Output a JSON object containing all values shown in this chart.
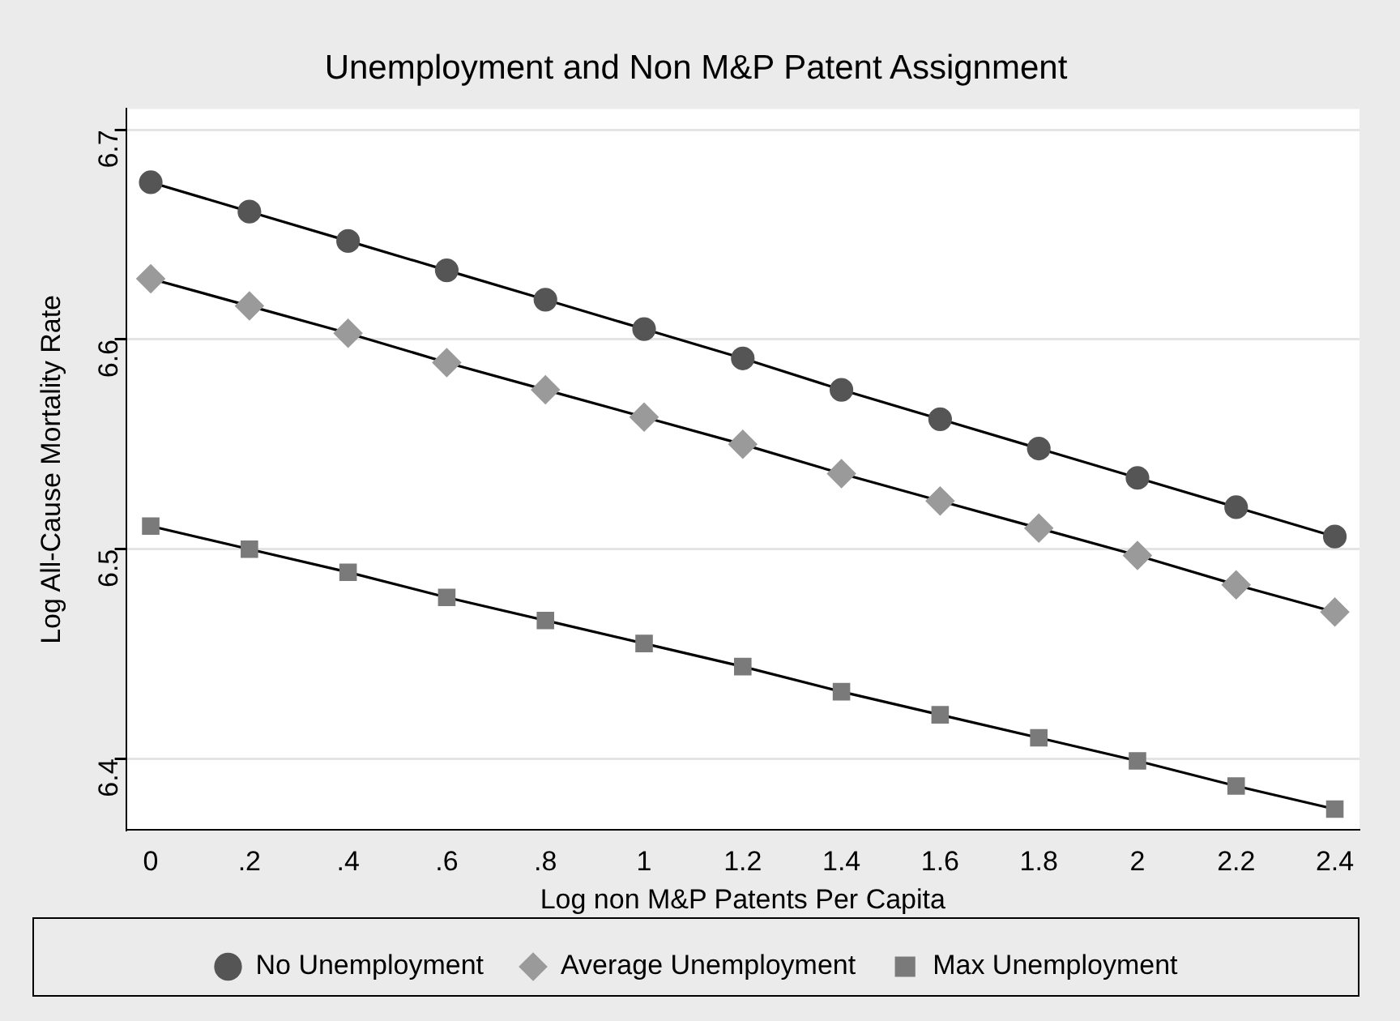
{
  "chart_data": {
    "type": "line",
    "title": "Unemployment and Non M&P Patent Assignment",
    "xlabel": "Log non M&P Patents Per Capita",
    "ylabel": "Log All-Cause Mortality Rate",
    "x": [
      0,
      0.2,
      0.4,
      0.6,
      0.8,
      1,
      1.2,
      1.4,
      1.6,
      1.8,
      2,
      2.2,
      2.4
    ],
    "series": [
      {
        "name": "No Unemployment",
        "color": "#555555",
        "marker": "circle",
        "values": [
          6.675,
          6.661,
          6.647,
          6.633,
          6.619,
          6.605,
          6.591,
          6.576,
          6.562,
          6.548,
          6.534,
          6.52,
          6.506
        ]
      },
      {
        "name": "Average Unemployment",
        "color": "#9a9a9a",
        "marker": "diamond",
        "values": [
          6.629,
          6.616,
          6.603,
          6.589,
          6.576,
          6.563,
          6.55,
          6.536,
          6.523,
          6.51,
          6.497,
          6.483,
          6.47
        ]
      },
      {
        "name": "Max Unemployment",
        "color": "#7a7a7a",
        "marker": "square",
        "values": [
          6.511,
          6.5,
          6.489,
          6.477,
          6.466,
          6.455,
          6.444,
          6.432,
          6.421,
          6.41,
          6.399,
          6.387,
          6.376
        ]
      }
    ],
    "xlim": [
      -0.05,
      2.45
    ],
    "xticks": [
      0,
      {
        "value": 0.2,
        "label": ".2"
      },
      {
        "value": 0.4,
        "label": ".4"
      },
      {
        "value": 0.6,
        "label": ".6"
      },
      {
        "value": 0.8,
        "label": ".8"
      },
      1,
      1.2,
      1.4,
      1.6,
      1.8,
      2,
      2.2,
      2.4
    ],
    "ylim": [
      6.366,
      6.71
    ],
    "yticks": [
      6.4,
      6.5,
      6.6,
      6.7
    ],
    "grid": "y",
    "legend": "bottom",
    "line_style": "solid"
  }
}
